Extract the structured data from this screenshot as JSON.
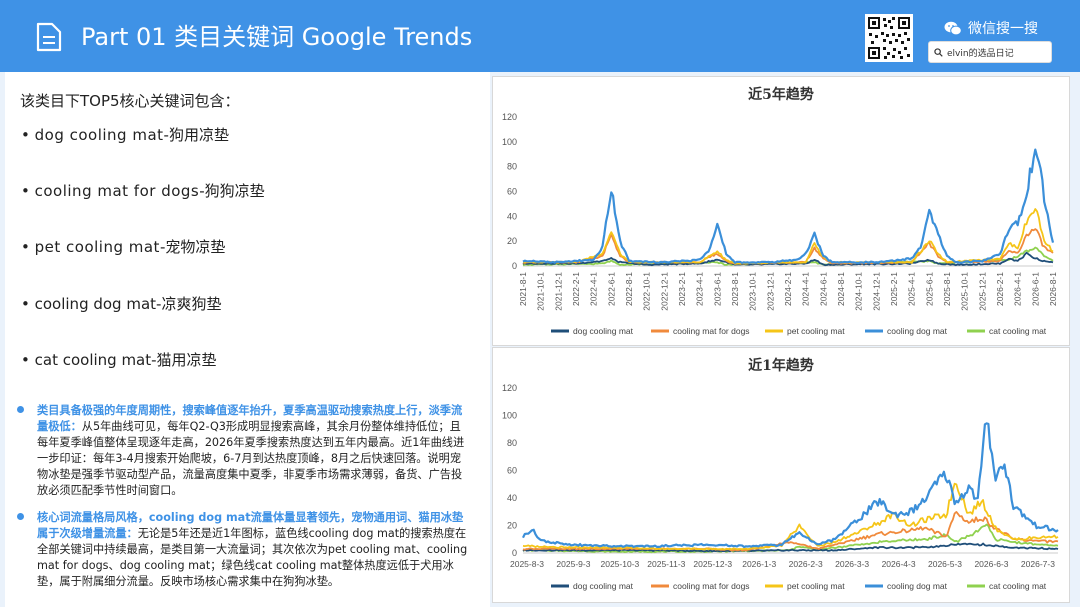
{
  "header": {
    "title": "Part 01 类目关键词 Google Trends",
    "wechat_label": "微信搜一搜",
    "search_value": "elvin的选品日记"
  },
  "left": {
    "intro": "该类目下TOP5核心关键词包含：",
    "keywords": [
      {
        "en": "dog cooling mat",
        "zh": "-狗用凉垫"
      },
      {
        "en": "cooling mat for dogs",
        "zh": "-狗狗凉垫"
      },
      {
        "en": "pet cooling mat",
        "zh": "-宠物凉垫"
      },
      {
        "en": "cooling dog mat",
        "zh": "-凉爽狗垫"
      },
      {
        "en": "cat cooling mat",
        "zh": "-猫用凉垫"
      }
    ],
    "paragraphs": [
      {
        "highlight": "类目具备极强的年度周期性，搜索峰值逐年抬升，夏季高温驱动搜索热度上行，淡季流量极低：",
        "body": "从5年曲线可见，每年Q2-Q3形成明显搜索高峰，其余月份整体维持低位；且每年夏季峰值整体呈现逐年走高，2026年夏季搜索热度达到五年内最高。近1年曲线进一步印证：每年3-4月搜索开始爬坡，6-7月到达热度顶峰，8月之后快速回落。说明宠物冰垫是强季节驱动型产品，流量高度集中夏季，非夏季市场需求薄弱，备货、广告投放必须匹配季节性时间窗口。"
      },
      {
        "highlight": "核心词流量格局风格，cooling dog mat流量体量显著领先，宠物通用词、猫用冰垫属于次级增量流量：",
        "body": "无论是5年还是近1年图标，蓝色线cooling dog mat的搜索热度在全部关键词中持续最高，是类目第一大流量词；其次依次为pet cooling mat、cooling mat for dogs、dog cooling mat；绿色线cat cooling mat整体热度远低于犬用冰垫，属于附属细分流量。反映市场核心需求集中在狗狗冰垫。"
      }
    ]
  },
  "chart_data": [
    {
      "type": "line",
      "title": "近5年趋势",
      "ylim": [
        0,
        120
      ],
      "yticks": [
        0,
        20,
        40,
        60,
        80,
        100,
        120
      ],
      "xlabels": [
        "2021-8-1",
        "2021-10-1",
        "2021-12-1",
        "2022-2-1",
        "2022-4-1",
        "2022-6-1",
        "2022-8-1",
        "2022-10-1",
        "2022-12-1",
        "2023-2-1",
        "2023-4-1",
        "2023-6-1",
        "2023-8-1",
        "2023-10-1",
        "2023-12-1",
        "2024-2-1",
        "2024-4-1",
        "2024-6-1",
        "2024-8-1",
        "2024-10-1",
        "2024-12-1",
        "2025-2-1",
        "2025-4-1",
        "2025-6-1",
        "2025-8-1",
        "2025-10-1",
        "2025-12-1",
        "2026-2-1",
        "2026-4-1",
        "2026-6-1",
        "2026-8-1"
      ],
      "x_months": 60,
      "series": [
        {
          "name": "dog cooling mat",
          "color": "#1f4e79",
          "keypoints": [
            [
              0,
              2
            ],
            [
              6,
              2
            ],
            [
              9,
              4
            ],
            [
              10,
              6
            ],
            [
              11,
              3
            ],
            [
              14,
              1
            ],
            [
              20,
              2
            ],
            [
              22,
              5
            ],
            [
              24,
              1
            ],
            [
              32,
              2
            ],
            [
              33,
              5
            ],
            [
              34,
              1
            ],
            [
              44,
              2
            ],
            [
              46,
              5
            ],
            [
              47,
              2
            ],
            [
              49,
              1
            ],
            [
              54,
              2
            ],
            [
              55,
              6
            ],
            [
              56,
              4
            ],
            [
              57,
              10
            ],
            [
              58,
              6
            ],
            [
              59,
              4
            ],
            [
              60,
              3
            ]
          ]
        },
        {
          "name": "cooling mat for dogs",
          "color": "#f08a3c",
          "keypoints": [
            [
              0,
              3
            ],
            [
              6,
              3
            ],
            [
              9,
              8
            ],
            [
              10,
              25
            ],
            [
              11,
              8
            ],
            [
              12,
              3
            ],
            [
              20,
              3
            ],
            [
              22,
              10
            ],
            [
              23,
              4
            ],
            [
              24,
              2
            ],
            [
              32,
              3
            ],
            [
              33,
              14
            ],
            [
              34,
              6
            ],
            [
              35,
              2
            ],
            [
              44,
              3
            ],
            [
              46,
              18
            ],
            [
              47,
              8
            ],
            [
              48,
              3
            ],
            [
              54,
              4
            ],
            [
              55,
              12
            ],
            [
              56,
              10
            ],
            [
              57,
              25
            ],
            [
              58,
              30
            ],
            [
              59,
              15
            ],
            [
              60,
              10
            ]
          ]
        },
        {
          "name": "pet cooling mat",
          "color": "#f5c518",
          "keypoints": [
            [
              0,
              3
            ],
            [
              6,
              3
            ],
            [
              9,
              10
            ],
            [
              10,
              28
            ],
            [
              11,
              10
            ],
            [
              12,
              3
            ],
            [
              20,
              3
            ],
            [
              22,
              12
            ],
            [
              23,
              5
            ],
            [
              24,
              2
            ],
            [
              32,
              3
            ],
            [
              33,
              18
            ],
            [
              34,
              7
            ],
            [
              35,
              3
            ],
            [
              44,
              3
            ],
            [
              46,
              20
            ],
            [
              47,
              10
            ],
            [
              48,
              3
            ],
            [
              54,
              6
            ],
            [
              55,
              18
            ],
            [
              56,
              15
            ],
            [
              57,
              35
            ],
            [
              58,
              48
            ],
            [
              59,
              20
            ],
            [
              60,
              12
            ]
          ]
        },
        {
          "name": "cooling dog mat",
          "color": "#3b8fd9",
          "keypoints": [
            [
              0,
              4
            ],
            [
              4,
              3
            ],
            [
              8,
              5
            ],
            [
              9,
              15
            ],
            [
              10,
              63
            ],
            [
              11,
              20
            ],
            [
              12,
              4
            ],
            [
              16,
              3
            ],
            [
              20,
              5
            ],
            [
              21,
              12
            ],
            [
              22,
              32
            ],
            [
              23,
              10
            ],
            [
              24,
              3
            ],
            [
              28,
              3
            ],
            [
              31,
              5
            ],
            [
              32,
              10
            ],
            [
              33,
              25
            ],
            [
              34,
              8
            ],
            [
              35,
              3
            ],
            [
              40,
              3
            ],
            [
              44,
              6
            ],
            [
              45,
              15
            ],
            [
              46,
              43
            ],
            [
              47,
              25
            ],
            [
              48,
              8
            ],
            [
              49,
              3
            ],
            [
              52,
              4
            ],
            [
              54,
              10
            ],
            [
              55,
              30
            ],
            [
              56,
              35
            ],
            [
              57,
              55
            ],
            [
              58,
              100
            ],
            [
              59,
              55
            ],
            [
              60,
              18
            ]
          ]
        },
        {
          "name": "cat cooling mat",
          "color": "#8fd14f",
          "keypoints": [
            [
              0,
              1
            ],
            [
              9,
              2
            ],
            [
              10,
              4
            ],
            [
              11,
              1
            ],
            [
              22,
              3
            ],
            [
              23,
              1
            ],
            [
              33,
              3
            ],
            [
              34,
              1
            ],
            [
              46,
              4
            ],
            [
              47,
              2
            ],
            [
              55,
              5
            ],
            [
              56,
              8
            ],
            [
              57,
              12
            ],
            [
              58,
              15
            ],
            [
              59,
              8
            ],
            [
              60,
              4
            ]
          ]
        }
      ]
    },
    {
      "type": "line",
      "title": "近1年趋势",
      "ylim": [
        0,
        120
      ],
      "yticks": [
        0,
        20,
        40,
        60,
        80,
        100,
        120
      ],
      "xlabels": [
        "2025-8-3",
        "2025-9-3",
        "2025-10-3",
        "2025-11-3",
        "2025-12-3",
        "2026-1-3",
        "2026-2-3",
        "2026-3-3",
        "2026-4-3",
        "2026-5-3",
        "2026-6-3",
        "2026-7-3"
      ],
      "x_months": 12,
      "series": [
        {
          "name": "dog cooling mat",
          "color": "#1f4e79",
          "keypoints": [
            [
              0,
              2
            ],
            [
              1,
              2
            ],
            [
              2,
              2
            ],
            [
              3,
              2
            ],
            [
              4,
              1.5
            ],
            [
              5,
              1.5
            ],
            [
              6,
              2
            ],
            [
              7,
              2
            ],
            [
              8,
              4
            ],
            [
              9,
              4
            ],
            [
              10,
              7
            ],
            [
              11,
              4
            ],
            [
              12,
              3
            ]
          ]
        },
        {
          "name": "cooling mat for dogs",
          "color": "#f08a3c",
          "keypoints": [
            [
              0,
              3
            ],
            [
              1,
              3
            ],
            [
              2,
              3
            ],
            [
              3,
              3
            ],
            [
              4,
              3
            ],
            [
              5,
              2
            ],
            [
              6,
              8
            ],
            [
              6.6,
              3
            ],
            [
              7,
              6
            ],
            [
              8,
              14
            ],
            [
              8.6,
              16
            ],
            [
              9,
              18
            ],
            [
              9.5,
              12
            ],
            [
              9.7,
              30
            ],
            [
              10,
              22
            ],
            [
              10.3,
              26
            ],
            [
              10.6,
              18
            ],
            [
              11,
              10
            ],
            [
              12,
              8
            ]
          ]
        },
        {
          "name": "pet cooling mat",
          "color": "#f5c518",
          "keypoints": [
            [
              0,
              5
            ],
            [
              1,
              4
            ],
            [
              2,
              4
            ],
            [
              3,
              3
            ],
            [
              4,
              3
            ],
            [
              5,
              3
            ],
            [
              5.8,
              5
            ],
            [
              6.2,
              20
            ],
            [
              6.6,
              5
            ],
            [
              7,
              8
            ],
            [
              8,
              22
            ],
            [
              8.3,
              28
            ],
            [
              8.7,
              20
            ],
            [
              9,
              24
            ],
            [
              9.5,
              28
            ],
            [
              9.7,
              53
            ],
            [
              10,
              28
            ],
            [
              10.3,
              38
            ],
            [
              10.6,
              18
            ],
            [
              11,
              10
            ],
            [
              12,
              12
            ]
          ]
        },
        {
          "name": "cooling dog mat",
          "color": "#3b8fd9",
          "keypoints": [
            [
              0,
              12
            ],
            [
              0.2,
              17
            ],
            [
              0.4,
              9
            ],
            [
              1,
              6
            ],
            [
              2,
              5
            ],
            [
              3,
              5
            ],
            [
              4,
              6
            ],
            [
              5,
              5
            ],
            [
              5.8,
              6
            ],
            [
              6.2,
              15
            ],
            [
              6.6,
              6
            ],
            [
              7,
              10
            ],
            [
              7.6,
              27
            ],
            [
              8,
              38
            ],
            [
              8.3,
              28
            ],
            [
              8.7,
              30
            ],
            [
              9,
              38
            ],
            [
              9.3,
              52
            ],
            [
              9.5,
              57
            ],
            [
              9.7,
              36
            ],
            [
              10,
              48
            ],
            [
              10.2,
              38
            ],
            [
              10.4,
              100
            ],
            [
              10.6,
              55
            ],
            [
              10.8,
              66
            ],
            [
              11,
              34
            ],
            [
              11.5,
              20
            ],
            [
              12,
              16
            ]
          ]
        },
        {
          "name": "cat cooling mat",
          "color": "#8fd14f",
          "keypoints": [
            [
              0,
              2
            ],
            [
              2,
              1
            ],
            [
              4,
              1
            ],
            [
              6,
              2
            ],
            [
              6.2,
              5
            ],
            [
              6.6,
              2
            ],
            [
              7,
              4
            ],
            [
              8,
              8
            ],
            [
              9,
              10
            ],
            [
              9.5,
              13
            ],
            [
              9.7,
              8
            ],
            [
              10,
              12
            ],
            [
              10.4,
              20
            ],
            [
              10.6,
              10
            ],
            [
              11,
              8
            ],
            [
              12,
              5
            ]
          ]
        }
      ]
    }
  ]
}
